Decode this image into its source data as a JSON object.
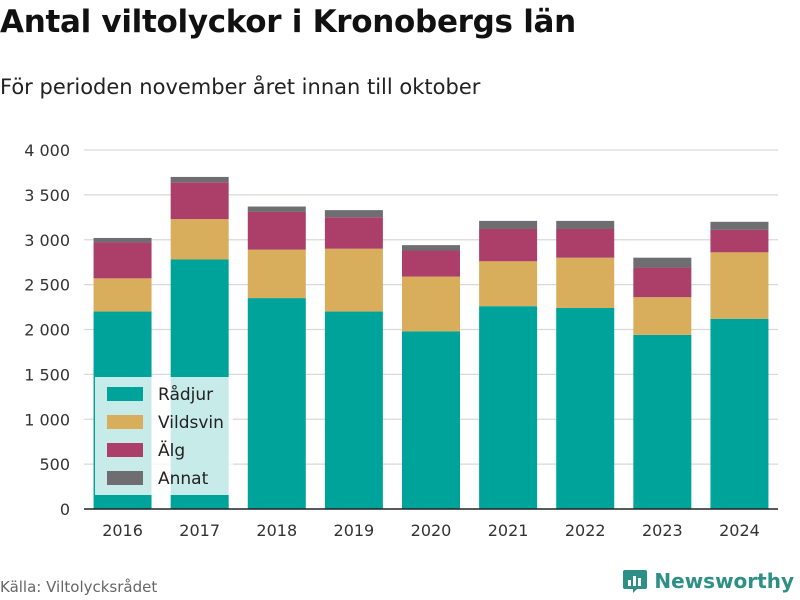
{
  "title": "Antal viltolyckor i Kronobergs län",
  "subtitle": "För perioden november året innan till oktober",
  "source": "Källa: Viltolycksrådet",
  "brand": "Newsworthy",
  "chart_data": {
    "type": "bar",
    "stacked": true,
    "categories": [
      "2016",
      "2017",
      "2018",
      "2019",
      "2020",
      "2021",
      "2022",
      "2023",
      "2024"
    ],
    "series": [
      {
        "name": "Rådjur",
        "color": "#00a39a",
        "values": [
          2200,
          2780,
          2350,
          2200,
          1980,
          2260,
          2240,
          1940,
          2120
        ]
      },
      {
        "name": "Vildsvin",
        "color": "#d8ad5b",
        "values": [
          370,
          450,
          540,
          700,
          610,
          500,
          560,
          420,
          740
        ]
      },
      {
        "name": "Älg",
        "color": "#ac3f6a",
        "values": [
          400,
          410,
          420,
          350,
          290,
          360,
          320,
          330,
          250
        ]
      },
      {
        "name": "Annat",
        "color": "#6e6e72",
        "values": [
          50,
          60,
          60,
          80,
          60,
          90,
          90,
          110,
          90
        ]
      }
    ],
    "ylim": [
      0,
      4000
    ],
    "yticks": [
      0,
      500,
      1000,
      1500,
      2000,
      2500,
      3000,
      3500,
      4000
    ],
    "ytick_labels": [
      "0",
      "500",
      "1 000",
      "1 500",
      "2 000",
      "2 500",
      "3 000",
      "3 500",
      "4 000"
    ],
    "grid": true,
    "legend_position": "bottom-left, inside plot"
  }
}
